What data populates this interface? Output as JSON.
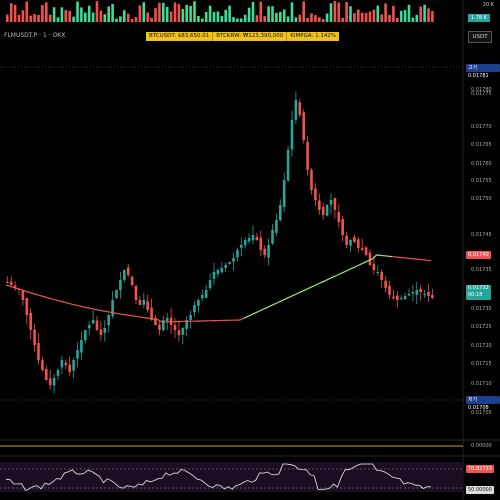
{
  "symbol": {
    "label": "FLMUSDT.P · 1 · OKX"
  },
  "ticker": {
    "btc_usdt": "BTCUSDT: $83,650.01",
    "btc_krw": "BTCKRW: ₩123,390,000",
    "kimpga": "KIMPGA: 1.142%"
  },
  "currency_button": "USDT",
  "volume_axis": {
    "top": "20 K",
    "current": "1.78 K"
  },
  "price_axis": {
    "ticks": [
      "0.01780",
      "0.01775",
      "0.01770",
      "0.01765",
      "0.01760",
      "0.01755",
      "0.01750",
      "0.01745",
      "0.01735",
      "0.01730",
      "0.01725",
      "0.01720",
      "0.01715",
      "0.01710",
      "0.01705"
    ],
    "high_tag": {
      "label": "고가",
      "value": "0.01781"
    },
    "low_tag": {
      "label": "저가",
      "value": "0.01708"
    },
    "ma_tag": "0.01740",
    "last_price": "0.01732",
    "countdown": "00:18"
  },
  "indicator1": {
    "value": "0.00000"
  },
  "indicator2": {
    "upper": "70.82733",
    "lower": "50.00000"
  },
  "colors": {
    "up": "#26a69a",
    "down": "#ef5350",
    "ma_down": "#ef5350",
    "ma_up": "#9ce870",
    "tag_yellow": "#f0c419"
  }
}
